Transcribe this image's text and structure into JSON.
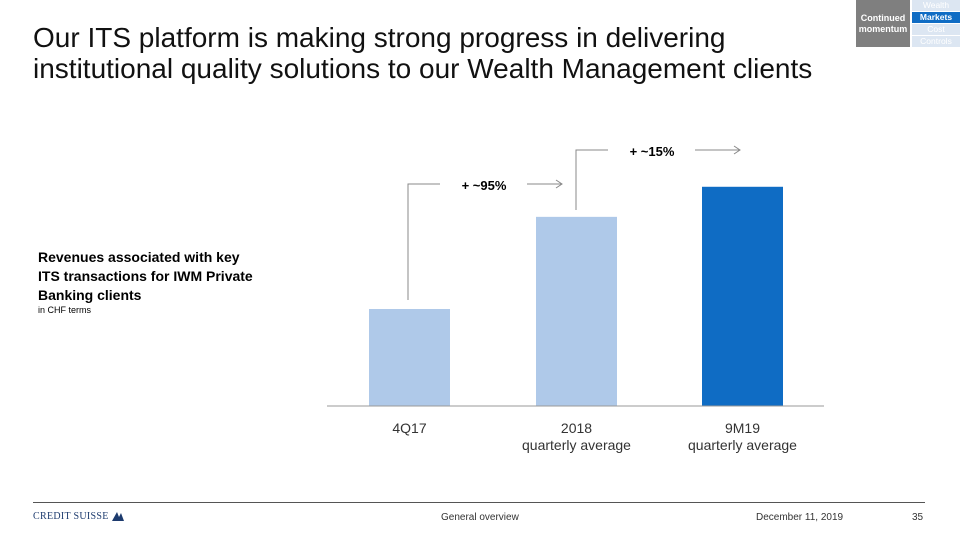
{
  "header": {
    "title": "Our ITS platform is making strong progress in delivering institutional quality solutions to our Wealth Management clients"
  },
  "nav": {
    "section": "Continued momentum",
    "items": [
      {
        "label": "Wealth",
        "active": false
      },
      {
        "label": "Markets",
        "active": true
      },
      {
        "label": "Cost",
        "active": false
      },
      {
        "label": "Controls",
        "active": false
      }
    ]
  },
  "description": {
    "title": "Revenues associated with key ITS transactions for IWM Private Banking clients",
    "subtitle": "in CHF terms"
  },
  "chart_data": {
    "type": "bar",
    "categories": [
      "4Q17",
      "2018",
      "9M19"
    ],
    "category_sublabels": [
      "",
      "quarterly average",
      "quarterly average"
    ],
    "values": [
      100,
      195,
      226
    ],
    "colors": [
      "#afc9e9",
      "#afc9e9",
      "#0f6cc4"
    ],
    "ylabel": "",
    "annotations": [
      "+ ~95%",
      "+ ~15%"
    ]
  },
  "footer": {
    "logo": "CREDIT SUISSE",
    "section": "General overview",
    "date": "December 11, 2019",
    "page": "35"
  }
}
